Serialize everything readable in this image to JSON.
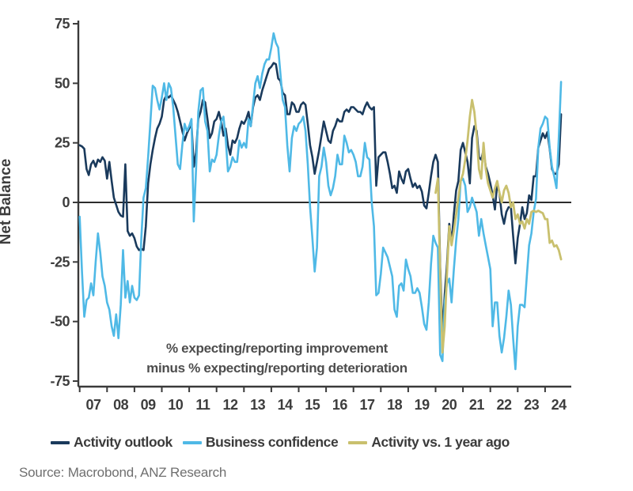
{
  "y_axis": {
    "label": "Net Balance",
    "ticks": [
      75,
      50,
      25,
      0,
      -25,
      -50,
      -75
    ],
    "min": -75,
    "max": 75
  },
  "x_axis": {
    "tick_years": [
      "07",
      "08",
      "09",
      "10",
      "11",
      "12",
      "13",
      "14",
      "15",
      "16",
      "17",
      "18",
      "19",
      "20",
      "21",
      "22",
      "23",
      "24"
    ]
  },
  "annotation": {
    "line1": "% expecting/reporting improvement",
    "line2": "minus % expecting/reporting deterioration"
  },
  "legend": [
    {
      "label": "Activity outlook",
      "color": "#1a3a5c"
    },
    {
      "label": "Business confidence",
      "color": "#4fb9e6"
    },
    {
      "label": "Activity vs. 1 year ago",
      "color": "#c9c06e"
    }
  ],
  "source": "Source: Macrobond, ANZ Research",
  "chart_data": {
    "type": "line",
    "title": "",
    "xlabel": "",
    "ylabel": "Net Balance",
    "ylim": [
      -75,
      75
    ],
    "x_range": [
      "2007-01",
      "2024-08"
    ],
    "grid": false,
    "legend_position": "bottom",
    "series": [
      {
        "name": "Activity outlook",
        "color": "#1a3a5c",
        "width": 2.6,
        "start": "2007-01",
        "freq": "monthly",
        "values": [
          24,
          23.5,
          22.5,
          14,
          11.5,
          16,
          17.5,
          15,
          18,
          17,
          19,
          17.5,
          10,
          17,
          9,
          2,
          -1,
          -4,
          -5.5,
          -6,
          16,
          -12,
          -14,
          -13,
          -15,
          -18.5,
          -20,
          -19.5,
          -20,
          -10,
          8,
          16,
          22,
          27,
          31,
          33,
          36,
          43,
          45,
          44,
          45,
          43,
          41,
          38,
          34,
          30,
          26,
          29,
          31,
          33,
          15,
          21,
          35,
          38,
          43,
          42,
          35,
          27,
          29,
          34,
          35,
          38,
          34,
          28,
          31,
          24,
          20,
          26,
          25,
          27,
          31,
          34,
          33,
          35,
          38,
          32,
          40,
          44,
          45,
          43,
          47,
          50,
          53,
          56,
          57,
          58.5,
          58,
          52,
          51,
          46,
          45,
          37,
          37,
          42,
          41,
          38,
          38,
          41,
          42,
          41,
          33,
          24,
          19,
          12,
          17,
          22,
          28,
          34,
          30,
          26,
          25,
          30,
          32,
          35,
          34,
          34,
          38,
          39,
          38,
          40,
          40,
          39,
          38,
          38,
          37,
          40,
          42,
          40,
          39,
          40,
          7,
          19,
          20,
          21,
          21,
          17,
          12,
          6,
          7,
          4,
          13,
          10,
          8,
          13,
          14,
          10,
          6.5,
          8,
          6,
          7,
          4.5,
          -1.3,
          -2.5,
          4,
          11,
          17,
          20,
          17,
          -27,
          -55,
          -39,
          -26,
          -9,
          -17,
          -5,
          5,
          9,
          22,
          25,
          21,
          17,
          8,
          27,
          32,
          30,
          19,
          18,
          22,
          15,
          12,
          8,
          3,
          -3,
          8,
          4,
          -5,
          -9,
          -4,
          -2,
          -2,
          -14,
          -25.6,
          -15,
          -9,
          -2,
          -7,
          -4.5,
          3,
          1,
          11,
          11,
          23,
          26,
          29,
          27,
          29.5,
          22.5,
          14,
          12,
          12,
          16,
          37
        ]
      },
      {
        "name": "Business confidence",
        "color": "#4fb9e6",
        "width": 2.6,
        "start": "2007-01",
        "freq": "monthly",
        "values": [
          -6,
          -29,
          -48,
          -41,
          -40,
          -34,
          -39,
          -25,
          -13,
          -21,
          -31,
          -35,
          -42,
          -45,
          -52,
          -56,
          -47,
          -57,
          -43,
          -20,
          -40,
          -33,
          -42,
          -35,
          -40,
          -41,
          -39,
          -15,
          2,
          6,
          19,
          34,
          49,
          48,
          43,
          39,
          44,
          50,
          43,
          50,
          48,
          40,
          28,
          16,
          14,
          24,
          33,
          30,
          32,
          35,
          -8,
          14,
          38,
          47,
          48,
          34,
          30,
          13,
          18,
          17,
          20,
          28,
          34,
          36,
          27,
          13,
          15,
          19,
          17,
          17,
          26,
          23,
          25,
          23,
          35,
          32,
          41,
          50,
          53,
          48,
          54,
          58,
          60,
          60,
          65,
          71,
          67,
          65,
          54,
          43,
          40,
          24,
          13,
          27,
          32,
          30,
          33,
          34,
          36,
          30,
          16,
          -2,
          -15,
          -29,
          -19,
          11,
          15,
          23,
          17,
          7,
          3,
          6,
          11,
          20,
          16,
          16,
          28,
          25,
          21,
          22,
          20,
          17,
          11,
          11,
          15,
          25,
          19,
          18,
          0,
          -10,
          -39,
          -38,
          -30,
          -19,
          -21,
          -23,
          -27,
          -31,
          -45,
          -48,
          -35,
          -34,
          -37,
          -24,
          -28,
          -31,
          -38,
          -38,
          -36,
          -38,
          -44,
          -51,
          -53.5,
          -42,
          -26,
          -14,
          -17,
          -19,
          -64,
          -66.6,
          -42,
          -34,
          -32,
          -42,
          -28,
          -16,
          -7,
          9,
          10,
          7,
          -4,
          -2,
          2,
          -1,
          -4,
          -14,
          -7,
          -13,
          -18,
          -23,
          -28,
          -52,
          -42,
          -42,
          -56,
          -63,
          -57,
          -48,
          -37,
          -43,
          -57,
          -70,
          -52,
          -43,
          -43,
          -44,
          -31,
          -18,
          -13,
          -4,
          1.5,
          23,
          31,
          33,
          36,
          35,
          23,
          15,
          11,
          6,
          27,
          50.6
        ]
      },
      {
        "name": "Activity vs. 1 year ago",
        "color": "#c9c06e",
        "width": 2.8,
        "start": "2020-01",
        "freq": "monthly",
        "values": [
          4,
          10,
          -30,
          -63,
          -52,
          -30,
          -10,
          -18,
          -12,
          -5,
          2,
          9,
          12,
          18,
          26,
          36,
          43,
          38,
          28,
          14,
          10,
          25,
          14,
          8,
          5,
          2,
          6,
          9,
          4,
          0,
          5,
          7,
          4,
          -2,
          0,
          -7,
          -5,
          -9,
          -8,
          -11,
          -7,
          -9,
          -4,
          -3.5,
          -4,
          -3.5,
          -4,
          -4.5,
          -7,
          -7,
          -17,
          -16,
          -18.5,
          -18,
          -20,
          -23.9
        ]
      }
    ]
  }
}
